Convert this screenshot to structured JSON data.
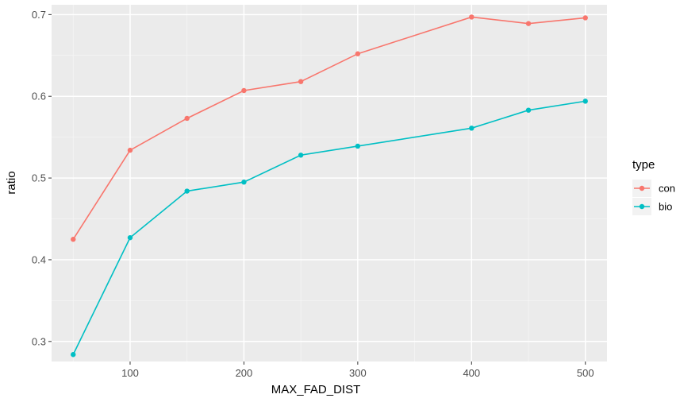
{
  "chart_data": {
    "type": "line",
    "xlabel": "MAX_FAD_DIST",
    "ylabel": "ratio",
    "x": [
      50,
      100,
      150,
      200,
      250,
      300,
      400,
      450,
      500
    ],
    "xlim": [
      31,
      519
    ],
    "ylim": [
      0.2755,
      0.712
    ],
    "x_ticks": [
      100,
      200,
      300,
      400,
      500
    ],
    "x_tick_labels": [
      "100",
      "200",
      "300",
      "400",
      "500"
    ],
    "y_ticks": [
      0.3,
      0.4,
      0.5,
      0.6,
      0.7
    ],
    "y_tick_labels": [
      "0.3",
      "0.4",
      "0.5",
      "0.6",
      "0.7"
    ],
    "grid": true,
    "legend": {
      "title": "type",
      "position": "right"
    },
    "series": [
      {
        "name": "con",
        "color": "#F8766D",
        "values": [
          0.425,
          0.534,
          0.573,
          0.607,
          0.618,
          0.652,
          0.697,
          0.689,
          0.696
        ]
      },
      {
        "name": "bio",
        "color": "#00BFC4",
        "values": [
          0.284,
          0.427,
          0.484,
          0.495,
          0.528,
          0.539,
          0.561,
          0.583,
          0.594
        ]
      }
    ]
  }
}
